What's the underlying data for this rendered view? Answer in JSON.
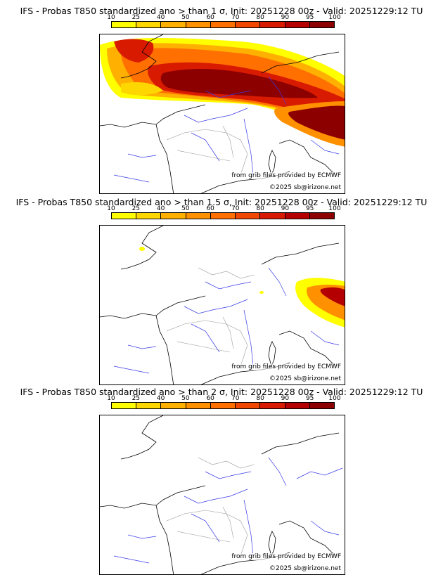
{
  "colorbar": {
    "ticks": [
      "10",
      "25",
      "40",
      "50",
      "60",
      "70",
      "80",
      "90",
      "95",
      "100"
    ],
    "colors": [
      "#ffff00",
      "#ffd700",
      "#ffb000",
      "#ff9000",
      "#ff7000",
      "#f04800",
      "#d81a00",
      "#b40000",
      "#8c0000",
      "#5a0000"
    ]
  },
  "panels": [
    {
      "title": "IFS - Probas T850  standardized ano > than 1 σ, Init: 20251228 00z - Valid: 20251229:12 TU",
      "credit_source": "from grib files provided by ECMWF",
      "credit_copyright": "©2025 sb@irizone.net"
    },
    {
      "title": "IFS - Probas T850  standardized ano > than 1.5 σ, Init: 20251228 00z - Valid: 20251229:12 TU",
      "credit_source": "from grib files provided by ECMWF",
      "credit_copyright": "©2025 sb@irizone.net"
    },
    {
      "title": "IFS - Probas T850  standardized ano > than 2 σ, Init: 20251228 00z - Valid: 20251229:12 TU",
      "credit_source": "from grib files provided by ECMWF",
      "credit_copyright": "©2025 sb@irizone.net"
    }
  ]
}
